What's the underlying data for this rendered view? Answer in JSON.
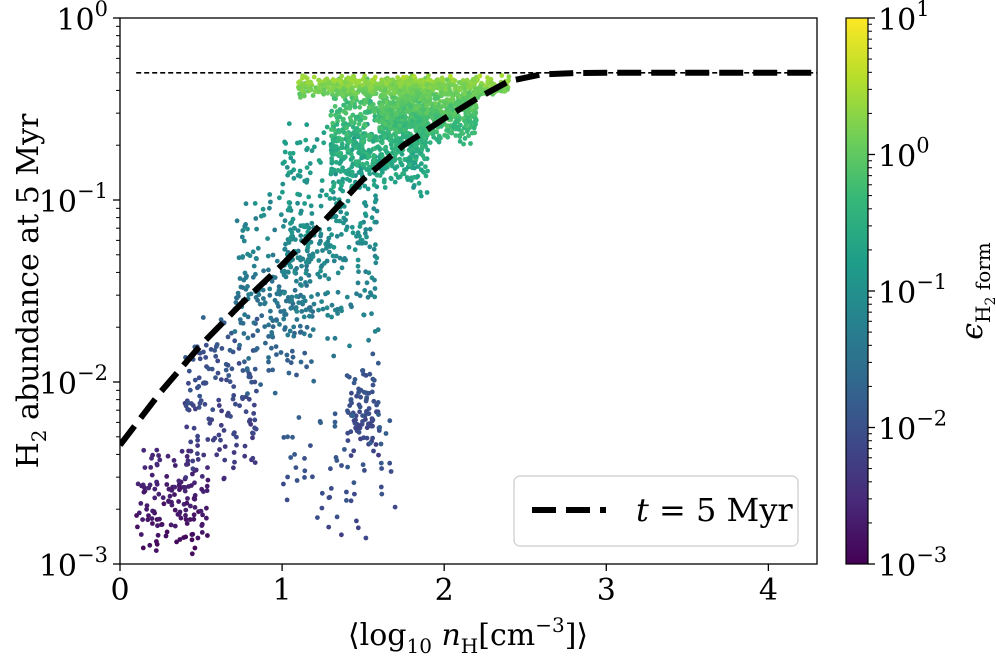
{
  "chart_data": {
    "type": "scatter",
    "title": "",
    "xlabel": "⟨log₁₀ n_H[cm⁻³]⟩",
    "ylabel": "H₂ abundance at 5 Myr",
    "xlim": [
      0,
      4.3
    ],
    "ylim": [
      0.001,
      1
    ],
    "yscale": "log",
    "xticks": [
      {
        "value": 0,
        "label": "0"
      },
      {
        "value": 1,
        "label": "1"
      },
      {
        "value": 2,
        "label": "2"
      },
      {
        "value": 3,
        "label": "3"
      },
      {
        "value": 4,
        "label": "4"
      }
    ],
    "yticks": [
      {
        "value": 1,
        "base": "10",
        "exp": "0"
      },
      {
        "value": 0.1,
        "base": "10",
        "exp": "−1"
      },
      {
        "value": 0.01,
        "base": "10",
        "exp": "−2"
      },
      {
        "value": 0.001,
        "base": "10",
        "exp": "−3"
      }
    ],
    "reference_line": {
      "y": 0.5,
      "style": "dashed-thin"
    },
    "series": [
      {
        "name": "t = 5 Myr",
        "style": "dashed-thick",
        "x": [
          0,
          0.25,
          0.5,
          0.75,
          1.0,
          1.25,
          1.5,
          1.75,
          2.0,
          2.2,
          2.4,
          2.6,
          2.8,
          3.0,
          3.5,
          4.3
        ],
        "y": [
          0.0045,
          0.0088,
          0.016,
          0.027,
          0.044,
          0.075,
          0.13,
          0.2,
          0.28,
          0.36,
          0.45,
          0.49,
          0.498,
          0.5,
          0.5,
          0.5
        ]
      }
    ],
    "scatter_clusters": [
      {
        "x_range": [
          0.1,
          0.55
        ],
        "log_y_range": [
          -3.0,
          -2.3
        ],
        "log_eps_range": [
          -3.0,
          -2.4
        ],
        "count": 140
      },
      {
        "x_range": [
          0.4,
          0.85
        ],
        "log_y_range": [
          -2.6,
          -1.6
        ],
        "log_eps_range": [
          -2.6,
          -1.6
        ],
        "count": 150
      },
      {
        "x_range": [
          0.7,
          1.2
        ],
        "log_y_range": [
          -2.1,
          -0.9
        ],
        "log_eps_range": [
          -2.0,
          -0.8
        ],
        "count": 220
      },
      {
        "x_range": [
          1.0,
          1.6
        ],
        "log_y_range": [
          -1.9,
          -0.5
        ],
        "log_eps_range": [
          -1.6,
          -0.5
        ],
        "count": 320
      },
      {
        "x_range": [
          1.3,
          1.9
        ],
        "log_y_range": [
          -1.0,
          -0.3
        ],
        "log_eps_range": [
          -1.0,
          0.2
        ],
        "count": 650
      },
      {
        "x_range": [
          1.6,
          2.2
        ],
        "log_y_range": [
          -0.7,
          -0.31
        ],
        "log_eps_range": [
          -0.6,
          0.4
        ],
        "count": 700
      },
      {
        "x_range": [
          1.4,
          1.6
        ],
        "log_y_range": [
          -2.5,
          -1.8
        ],
        "log_eps_range": [
          -2.4,
          -1.7
        ],
        "count": 90
      },
      {
        "x_range": [
          1.1,
          2.4
        ],
        "log_y_range": [
          -0.45,
          -0.31
        ],
        "log_eps_range": [
          -0.2,
          0.6
        ],
        "count": 500
      },
      {
        "x_range": [
          1.0,
          1.7
        ],
        "log_y_range": [
          -2.9,
          -2.0
        ],
        "log_eps_range": [
          -2.3,
          -1.6
        ],
        "count": 60
      }
    ],
    "colorbar": {
      "label": "ε_H₂ form",
      "scale": "log",
      "range": [
        0.001,
        10
      ],
      "colormap": "viridis",
      "ticks": [
        {
          "value": 10,
          "base": "10",
          "exp": "1"
        },
        {
          "value": 1,
          "base": "10",
          "exp": "0"
        },
        {
          "value": 0.1,
          "base": "10",
          "exp": "−1"
        },
        {
          "value": 0.01,
          "base": "10",
          "exp": "−2"
        },
        {
          "value": 0.001,
          "base": "10",
          "exp": "−3"
        }
      ]
    },
    "legend": {
      "position": "lower-right",
      "entries": [
        {
          "label": "t = 5 Myr",
          "style": "dashed-thick"
        }
      ]
    }
  },
  "colors": {
    "viridis": [
      "#440154",
      "#482878",
      "#3e4989",
      "#31688e",
      "#26828e",
      "#1f9e89",
      "#35b779",
      "#6ece58",
      "#b5de2b",
      "#fde725"
    ],
    "line": "#000000",
    "frame": "#000000"
  }
}
